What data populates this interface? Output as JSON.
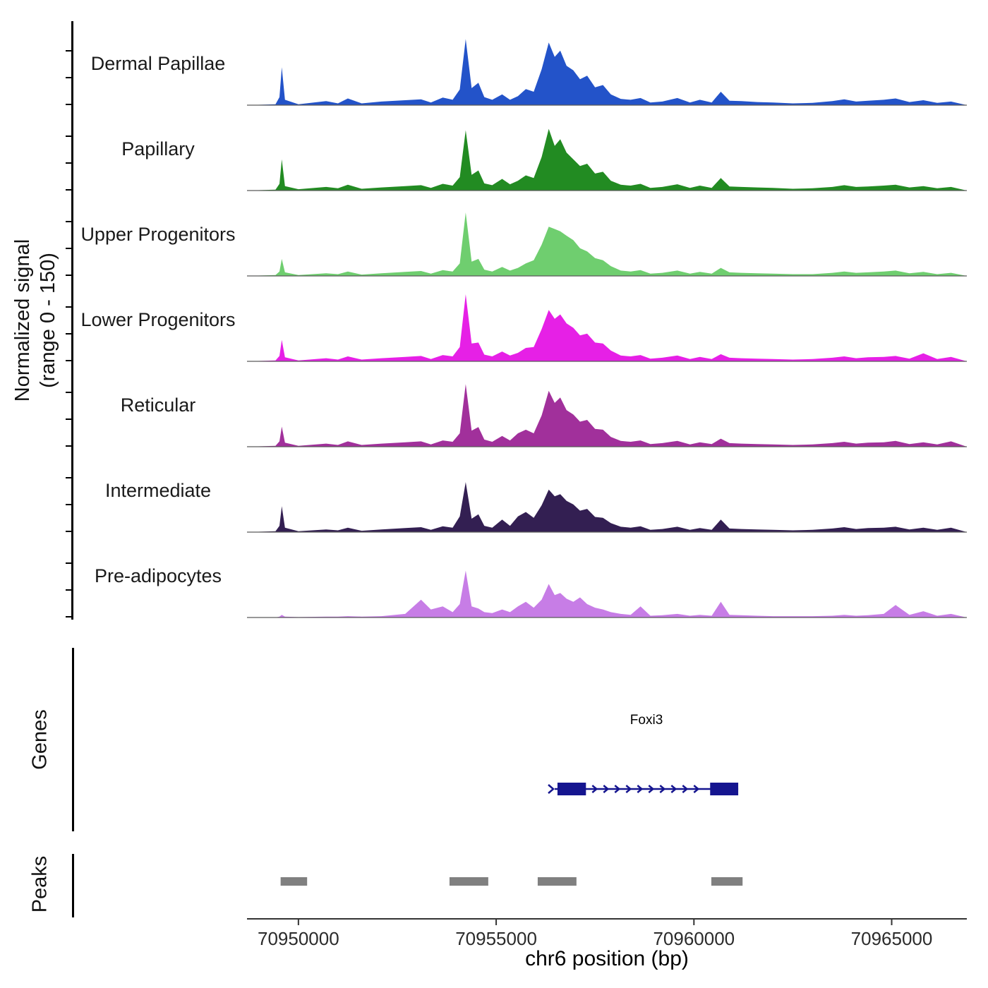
{
  "figure": {
    "y_axis_label_line1": "Normalized signal",
    "y_axis_label_line2": "(range 0 - 150)",
    "genes_label": "Genes",
    "peaks_label": "Peaks",
    "x_axis_label": "chr6 position (bp)"
  },
  "chart_data": {
    "type": "area",
    "title": "",
    "xlabel": "chr6 position (bp)",
    "ylabel": "Normalized signal (range 0 - 150)",
    "x_range_bp": [
      70948700,
      70966900
    ],
    "y_range": [
      0,
      150
    ],
    "x_ticks": [
      70950000,
      70955000,
      70960000,
      70965000
    ],
    "grid": false,
    "legend": "none",
    "x": [
      70948700,
      70949420,
      70949520,
      70949580,
      70949660,
      70950000,
      70950700,
      70951000,
      70951250,
      70951600,
      70952100,
      70952700,
      70953100,
      70953350,
      70953650,
      70953900,
      70954080,
      70954230,
      70954380,
      70954550,
      70954700,
      70954900,
      70955150,
      70955350,
      70955550,
      70955750,
      70955950,
      70956150,
      70956330,
      70956480,
      70956620,
      70956780,
      70956950,
      70957120,
      70957300,
      70957500,
      70957700,
      70957900,
      70958150,
      70958400,
      70958650,
      70958900,
      70959200,
      70959580,
      70959900,
      70960150,
      70960450,
      70960680,
      70960900,
      70961200,
      70961600,
      70962000,
      70962500,
      70963000,
      70963500,
      70963800,
      70964100,
      70964400,
      70964800,
      70965100,
      70965450,
      70965800,
      70966150,
      70966500,
      70966900
    ],
    "series": [
      {
        "name": "Dermal Papillae",
        "color": "#2353c9",
        "values": [
          0,
          2,
          18,
          85,
          12,
          2,
          9,
          4,
          15,
          4,
          8,
          11,
          13,
          6,
          17,
          12,
          35,
          148,
          38,
          50,
          18,
          12,
          24,
          12,
          20,
          36,
          30,
          80,
          140,
          108,
          122,
          88,
          78,
          58,
          66,
          40,
          45,
          24,
          14,
          12,
          16,
          6,
          8,
          16,
          6,
          12,
          6,
          30,
          10,
          9,
          7,
          6,
          4,
          5,
          9,
          13,
          8,
          10,
          12,
          15,
          7,
          11,
          5,
          8,
          0
        ]
      },
      {
        "name": "Papillary",
        "color": "#228B22",
        "values": [
          0,
          2,
          15,
          70,
          10,
          3,
          8,
          5,
          13,
          4,
          7,
          10,
          12,
          6,
          15,
          11,
          30,
          135,
          35,
          45,
          16,
          12,
          26,
          14,
          22,
          34,
          28,
          75,
          138,
          100,
          115,
          85,
          70,
          55,
          60,
          38,
          42,
          22,
          13,
          11,
          15,
          6,
          8,
          14,
          6,
          11,
          6,
          28,
          9,
          8,
          7,
          6,
          4,
          5,
          8,
          12,
          8,
          9,
          11,
          13,
          7,
          10,
          5,
          8,
          0
        ]
      },
      {
        "name": "Upper Progenitors",
        "color": "#6fce6f",
        "values": [
          0,
          2,
          10,
          38,
          8,
          2,
          6,
          4,
          10,
          3,
          6,
          9,
          11,
          5,
          13,
          10,
          28,
          142,
          32,
          38,
          14,
          10,
          20,
          12,
          18,
          28,
          35,
          70,
          110,
          105,
          100,
          90,
          80,
          62,
          55,
          40,
          35,
          22,
          12,
          10,
          13,
          5,
          7,
          12,
          5,
          9,
          5,
          18,
          8,
          7,
          6,
          5,
          4,
          4,
          7,
          10,
          7,
          8,
          10,
          12,
          6,
          9,
          4,
          7,
          0
        ]
      },
      {
        "name": "Lower Progenitors",
        "color": "#e620e6",
        "values": [
          0,
          2,
          12,
          48,
          9,
          2,
          7,
          4,
          11,
          4,
          7,
          10,
          12,
          5,
          14,
          11,
          32,
          150,
          40,
          42,
          15,
          11,
          22,
          13,
          19,
          30,
          32,
          72,
          115,
          95,
          105,
          85,
          75,
          58,
          62,
          42,
          40,
          24,
          13,
          11,
          14,
          6,
          8,
          13,
          5,
          10,
          5,
          16,
          8,
          7,
          6,
          5,
          4,
          5,
          8,
          11,
          7,
          9,
          10,
          12,
          6,
          18,
          5,
          10,
          0
        ]
      },
      {
        "name": "Reticular",
        "color": "#a1309b",
        "values": [
          0,
          2,
          12,
          45,
          9,
          2,
          7,
          4,
          12,
          4,
          7,
          10,
          12,
          5,
          14,
          11,
          30,
          140,
          36,
          44,
          16,
          11,
          24,
          14,
          30,
          38,
          30,
          70,
          125,
          98,
          110,
          82,
          72,
          56,
          60,
          40,
          38,
          22,
          13,
          11,
          14,
          6,
          8,
          13,
          5,
          10,
          6,
          18,
          8,
          7,
          6,
          5,
          4,
          5,
          8,
          11,
          7,
          9,
          10,
          13,
          6,
          10,
          5,
          12,
          0
        ]
      },
      {
        "name": "Intermediate",
        "color": "#331f52",
        "values": [
          0,
          2,
          14,
          58,
          10,
          2,
          6,
          4,
          10,
          3,
          6,
          9,
          11,
          5,
          13,
          10,
          35,
          112,
          30,
          40,
          14,
          10,
          28,
          14,
          35,
          45,
          32,
          60,
          95,
          80,
          85,
          70,
          62,
          48,
          52,
          34,
          32,
          20,
          12,
          10,
          13,
          5,
          7,
          12,
          5,
          9,
          5,
          28,
          8,
          7,
          6,
          5,
          4,
          5,
          8,
          11,
          7,
          9,
          10,
          12,
          6,
          10,
          5,
          10,
          0
        ]
      },
      {
        "name": "Pre-adipocytes",
        "color": "#c77de6",
        "values": [
          0,
          0,
          2,
          6,
          2,
          1,
          2,
          2,
          3,
          2,
          3,
          8,
          40,
          18,
          25,
          12,
          30,
          105,
          25,
          20,
          12,
          10,
          18,
          12,
          25,
          35,
          22,
          40,
          75,
          50,
          55,
          42,
          35,
          45,
          30,
          22,
          18,
          12,
          8,
          6,
          25,
          4,
          5,
          8,
          4,
          6,
          4,
          35,
          6,
          5,
          4,
          3,
          3,
          3,
          4,
          6,
          4,
          5,
          8,
          28,
          6,
          14,
          4,
          8,
          0
        ]
      }
    ],
    "gene": {
      "name": "Foxi3",
      "start": 70956480,
      "end": 70961120,
      "strand": "+",
      "color": "#15158f",
      "exons": [
        [
          70956550,
          70957270
        ],
        [
          70960410,
          70961120
        ]
      ]
    },
    "peaks": {
      "color": "#808080",
      "regions": [
        [
          70949550,
          70950220
        ],
        [
          70953820,
          70954800
        ],
        [
          70956050,
          70957030
        ],
        [
          70960440,
          70961230
        ]
      ]
    }
  }
}
